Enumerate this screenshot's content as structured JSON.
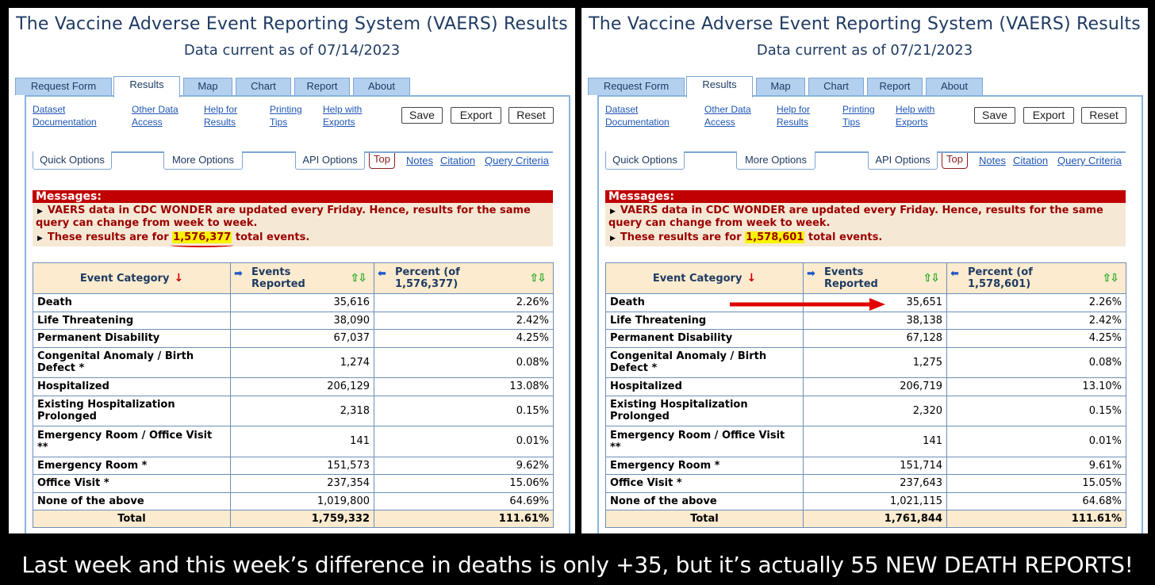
{
  "panels": [
    {
      "title": "The Vaccine Adverse Event Reporting System (VAERS) Results",
      "subtitle": "Data current as of 07/14/2023",
      "tabs": [
        "Request Form",
        "Results",
        "Map",
        "Chart",
        "Report",
        "About"
      ],
      "links": [
        "Dataset\nDocumentation",
        "Other Data\nAccess",
        "Help for\nResults",
        "Printing\nTips",
        "Help with\nExports"
      ],
      "buttons": [
        "Save",
        "Export",
        "Reset"
      ],
      "options": [
        "Quick Options",
        "More Options",
        "API Options"
      ],
      "top_label": "Top",
      "top_links": [
        "Notes",
        "Citation",
        "Query Criteria"
      ],
      "messages_header": "Messages:",
      "message_1a": "VAERS data in CDC WONDER are updated every Friday. Hence, results for the same",
      "message_1b": "query can change from week to week.",
      "message_2_prefix": "These results are for",
      "message_2_value": "1,576,377",
      "message_2_suffix": "total events.",
      "headers": {
        "category": "Event Category",
        "events": "Events\nReported",
        "percent": "Percent (of\n1,576,377)"
      },
      "rows": [
        {
          "category": "Death",
          "events": "35,616",
          "percent": "2.26%"
        },
        {
          "category": "Life Threatening",
          "events": "38,090",
          "percent": "2.42%"
        },
        {
          "category": "Permanent Disability",
          "events": "67,037",
          "percent": "4.25%"
        },
        {
          "category": "Congenital Anomaly / Birth Defect *",
          "events": "1,274",
          "percent": "0.08%"
        },
        {
          "category": "Hospitalized",
          "events": "206,129",
          "percent": "13.08%"
        },
        {
          "category": "Existing Hospitalization Prolonged",
          "events": "2,318",
          "percent": "0.15%"
        },
        {
          "category": "Emergency Room / Office Visit **",
          "events": "141",
          "percent": "0.01%"
        },
        {
          "category": "Emergency Room *",
          "events": "151,573",
          "percent": "9.62%"
        },
        {
          "category": "Office Visit *",
          "events": "237,354",
          "percent": "15.06%"
        },
        {
          "category": "None of the above",
          "events": "1,019,800",
          "percent": "64.69%"
        }
      ],
      "total": {
        "category": "Total",
        "events": "1,759,332",
        "percent": "111.61%"
      }
    },
    {
      "title": "The Vaccine Adverse Event Reporting System (VAERS) Results",
      "subtitle": "Data current as of 07/21/2023",
      "tabs": [
        "Request Form",
        "Results",
        "Map",
        "Chart",
        "Report",
        "About"
      ],
      "links": [
        "Dataset\nDocumentation",
        "Other Data\nAccess",
        "Help for\nResults",
        "Printing\nTips",
        "Help with\nExports"
      ],
      "buttons": [
        "Save",
        "Export",
        "Reset"
      ],
      "options": [
        "Quick Options",
        "More Options",
        "API Options"
      ],
      "top_label": "Top",
      "top_links": [
        "Notes",
        "Citation",
        "Query Criteria"
      ],
      "messages_header": "Messages:",
      "message_1a": "VAERS data in CDC WONDER are updated every Friday. Hence, results for the same",
      "message_1b": "query can change from week to week.",
      "message_2_prefix": "These results are for",
      "message_2_value": "1,578,601",
      "message_2_suffix": "total events.",
      "headers": {
        "category": "Event Category",
        "events": "Events\nReported",
        "percent": "Percent (of\n1,578,601)"
      },
      "rows": [
        {
          "category": "Death",
          "events": "35,651",
          "percent": "2.26%"
        },
        {
          "category": "Life Threatening",
          "events": "38,138",
          "percent": "2.42%"
        },
        {
          "category": "Permanent Disability",
          "events": "67,128",
          "percent": "4.25%"
        },
        {
          "category": "Congenital Anomaly / Birth Defect *",
          "events": "1,275",
          "percent": "0.08%"
        },
        {
          "category": "Hospitalized",
          "events": "206,719",
          "percent": "13.10%"
        },
        {
          "category": "Existing Hospitalization Prolonged",
          "events": "2,320",
          "percent": "0.15%"
        },
        {
          "category": "Emergency Room / Office Visit **",
          "events": "141",
          "percent": "0.01%"
        },
        {
          "category": "Emergency Room *",
          "events": "151,714",
          "percent": "9.61%"
        },
        {
          "category": "Office Visit *",
          "events": "237,643",
          "percent": "15.05%"
        },
        {
          "category": "None of the above",
          "events": "1,021,115",
          "percent": "64.68%"
        }
      ],
      "total": {
        "category": "Total",
        "events": "1,761,844",
        "percent": "111.61%"
      }
    }
  ],
  "caption": "Last week and this week’s difference in deaths is only +35, but it’s actually 55 NEW DEATH REPORTS!",
  "colors": {
    "tab_blue": "#b3d0ef",
    "message_red": "#c00000",
    "header_cream": "#fcebcf",
    "highlight": "#f8f400"
  }
}
